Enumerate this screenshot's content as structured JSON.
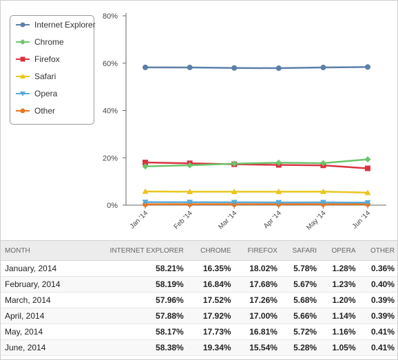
{
  "chart_data": {
    "type": "line",
    "categories": [
      "Jan '14",
      "Feb '14",
      "Mar '14",
      "Apr '14",
      "May '14",
      "Jun '14"
    ],
    "series": [
      {
        "name": "Internet Explorer",
        "color": "#5b80a8",
        "marker": "circle",
        "values": [
          58.21,
          58.19,
          57.96,
          57.88,
          58.17,
          58.38
        ]
      },
      {
        "name": "Chrome",
        "color": "#6cc46c",
        "marker": "diamond",
        "values": [
          16.35,
          16.84,
          17.52,
          17.92,
          17.73,
          19.34
        ]
      },
      {
        "name": "Firefox",
        "color": "#d93340",
        "marker": "square",
        "values": [
          18.02,
          17.68,
          17.26,
          17.0,
          16.81,
          15.54
        ]
      },
      {
        "name": "Safari",
        "color": "#e8c61e",
        "marker": "triangle",
        "values": [
          5.78,
          5.67,
          5.68,
          5.66,
          5.72,
          5.28
        ]
      },
      {
        "name": "Opera",
        "color": "#5aaad7",
        "marker": "triangle-down",
        "values": [
          1.28,
          1.23,
          1.2,
          1.14,
          1.16,
          1.05
        ]
      },
      {
        "name": "Other",
        "color": "#e8761e",
        "marker": "circle",
        "values": [
          0.36,
          0.4,
          0.39,
          0.39,
          0.41,
          0.41
        ]
      }
    ],
    "yticks": [
      "0%",
      "20%",
      "40%",
      "60%",
      "80%"
    ],
    "ylim": [
      0,
      80
    ],
    "grid": false,
    "legend": "top-left"
  },
  "table": {
    "headers": [
      "MONTH",
      "INTERNET EXPLORER",
      "CHROME",
      "FIREFOX",
      "SAFARI",
      "OPERA",
      "OTHER"
    ],
    "rows": [
      [
        "January, 2014",
        "58.21%",
        "16.35%",
        "18.02%",
        "5.78%",
        "1.28%",
        "0.36%"
      ],
      [
        "February, 2014",
        "58.19%",
        "16.84%",
        "17.68%",
        "5.67%",
        "1.23%",
        "0.40%"
      ],
      [
        "March, 2014",
        "57.96%",
        "17.52%",
        "17.26%",
        "5.68%",
        "1.20%",
        "0.39%"
      ],
      [
        "April, 2014",
        "57.88%",
        "17.92%",
        "17.00%",
        "5.66%",
        "1.14%",
        "0.39%"
      ],
      [
        "May, 2014",
        "58.17%",
        "17.73%",
        "16.81%",
        "5.72%",
        "1.16%",
        "0.41%"
      ],
      [
        "June, 2014",
        "58.38%",
        "19.34%",
        "15.54%",
        "5.28%",
        "1.05%",
        "0.41%"
      ]
    ]
  }
}
